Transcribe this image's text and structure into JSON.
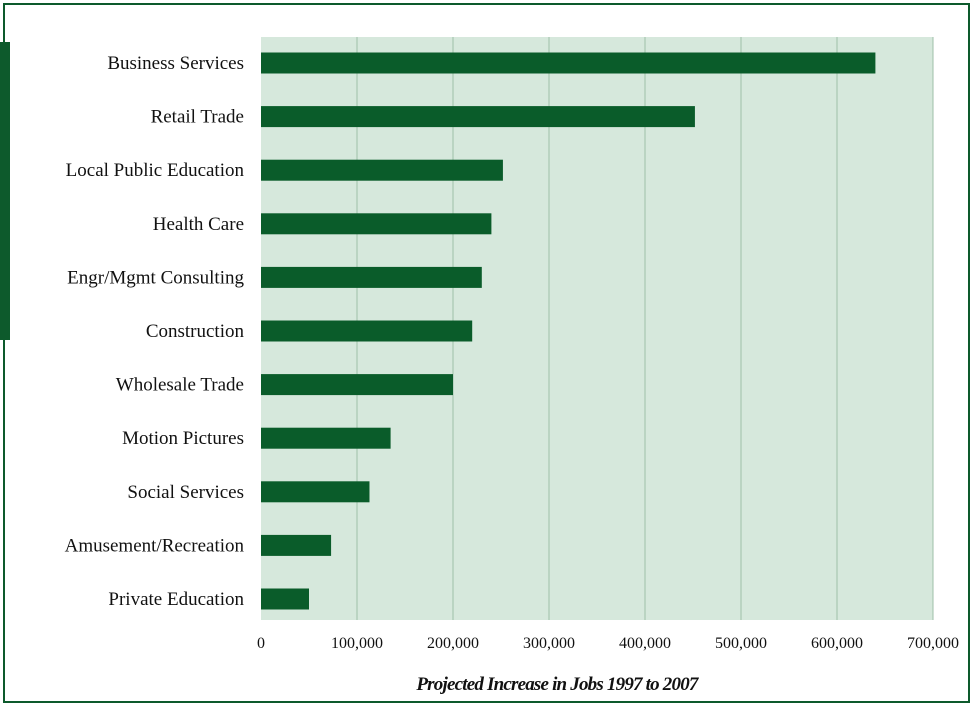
{
  "colors": {
    "bar": "#0a5c2a",
    "plot_bg": "#d6e8dc",
    "grid": "#9fbfa9",
    "frame": "#0d5a2c",
    "text": "#111111"
  },
  "chart_data": {
    "type": "bar",
    "orientation": "horizontal",
    "categories": [
      "Business Services",
      "Retail Trade",
      "Local Public Education",
      "Health Care",
      "Engr/Mgmt Consulting",
      "Construction",
      "Wholesale Trade",
      "Motion Pictures",
      "Social Services",
      "Amusement/Recreation",
      "Private Education"
    ],
    "values": [
      640000,
      452000,
      252000,
      240000,
      230000,
      220000,
      200000,
      135000,
      113000,
      73000,
      50000
    ],
    "xlabel": "Projected Increase in Jobs 1997 to 2007",
    "xlim": [
      0,
      700000
    ],
    "xticks": [
      0,
      100000,
      200000,
      300000,
      400000,
      500000,
      600000,
      700000
    ],
    "xtick_labels": [
      "0",
      "100,000",
      "200,000",
      "300,000",
      "400,000",
      "500,000",
      "600,000",
      "700,000"
    ],
    "grid": "vertical",
    "legend": "none"
  }
}
